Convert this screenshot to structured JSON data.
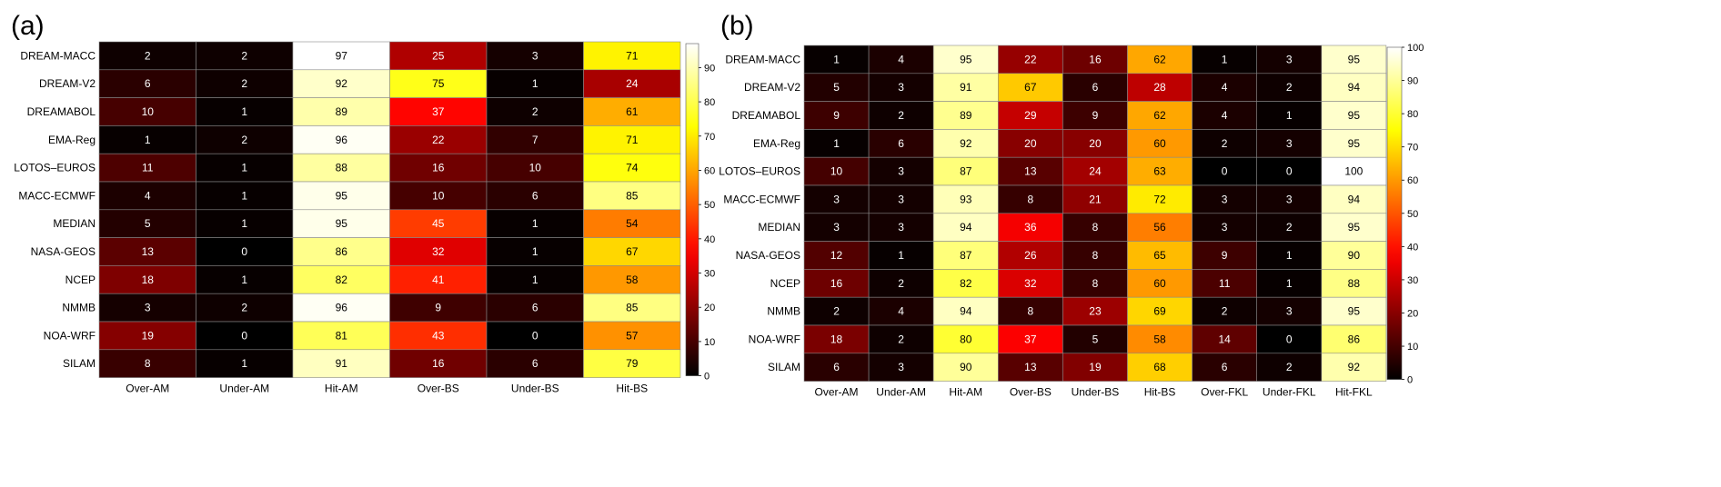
{
  "chart_data": [
    {
      "type": "heatmap",
      "panel_label": "(a)",
      "rows": [
        "DREAM-MACC",
        "DREAM-V2",
        "DREAMABOL",
        "EMA-Reg",
        "LOTOS–EUROS",
        "MACC-ECMWF",
        "MEDIAN",
        "NASA-GEOS",
        "NCEP",
        "NMMB",
        "NOA-WRF",
        "SILAM"
      ],
      "columns": [
        "Over-AM",
        "Under-AM",
        "Hit-AM",
        "Over-BS",
        "Under-BS",
        "Hit-BS"
      ],
      "values": [
        [
          2,
          2,
          97,
          25,
          3,
          71
        ],
        [
          6,
          2,
          92,
          75,
          1,
          24
        ],
        [
          10,
          1,
          89,
          37,
          2,
          61
        ],
        [
          1,
          2,
          96,
          22,
          7,
          71
        ],
        [
          11,
          1,
          88,
          16,
          10,
          74
        ],
        [
          4,
          1,
          95,
          10,
          6,
          85
        ],
        [
          5,
          1,
          95,
          45,
          1,
          54
        ],
        [
          13,
          0,
          86,
          32,
          1,
          67
        ],
        [
          18,
          1,
          82,
          41,
          1,
          58
        ],
        [
          3,
          2,
          96,
          9,
          6,
          85
        ],
        [
          19,
          0,
          81,
          43,
          0,
          57
        ],
        [
          8,
          1,
          91,
          16,
          6,
          79
        ]
      ],
      "colorbar": {
        "min": 0,
        "max": 97,
        "ticks": [
          "0",
          "10",
          "20",
          "30",
          "40",
          "50",
          "60",
          "70",
          "80",
          "90"
        ],
        "colormap": "hot"
      }
    },
    {
      "type": "heatmap",
      "panel_label": "(b)",
      "rows": [
        "DREAM-MACC",
        "DREAM-V2",
        "DREAMABOL",
        "EMA-Reg",
        "LOTOS–EUROS",
        "MACC-ECMWF",
        "MEDIAN",
        "NASA-GEOS",
        "NCEP",
        "NMMB",
        "NOA-WRF",
        "SILAM"
      ],
      "columns": [
        "Over-AM",
        "Under-AM",
        "Hit-AM",
        "Over-BS",
        "Under-BS",
        "Hit-BS",
        "Over-FKL",
        "Under-FKL",
        "Hit-FKL"
      ],
      "values": [
        [
          1,
          4,
          95,
          22,
          16,
          62,
          1,
          3,
          95
        ],
        [
          5,
          3,
          91,
          67,
          6,
          28,
          4,
          2,
          94
        ],
        [
          9,
          2,
          89,
          29,
          9,
          62,
          4,
          1,
          95
        ],
        [
          1,
          6,
          92,
          20,
          20,
          60,
          2,
          3,
          95
        ],
        [
          10,
          3,
          87,
          13,
          24,
          63,
          0,
          0,
          100
        ],
        [
          3,
          3,
          93,
          8,
          21,
          72,
          3,
          3,
          94
        ],
        [
          3,
          3,
          94,
          36,
          8,
          56,
          3,
          2,
          95
        ],
        [
          12,
          1,
          87,
          26,
          8,
          65,
          9,
          1,
          90
        ],
        [
          16,
          2,
          82,
          32,
          8,
          60,
          11,
          1,
          88
        ],
        [
          2,
          4,
          94,
          8,
          23,
          69,
          2,
          3,
          95
        ],
        [
          18,
          2,
          80,
          37,
          5,
          58,
          14,
          0,
          86
        ],
        [
          6,
          3,
          90,
          13,
          19,
          68,
          6,
          2,
          92
        ]
      ],
      "colorbar": {
        "min": 0,
        "max": 100,
        "ticks": [
          "0",
          "10",
          "20",
          "30",
          "40",
          "50",
          "60",
          "70",
          "80",
          "90",
          "100"
        ],
        "colormap": "hot"
      }
    }
  ]
}
